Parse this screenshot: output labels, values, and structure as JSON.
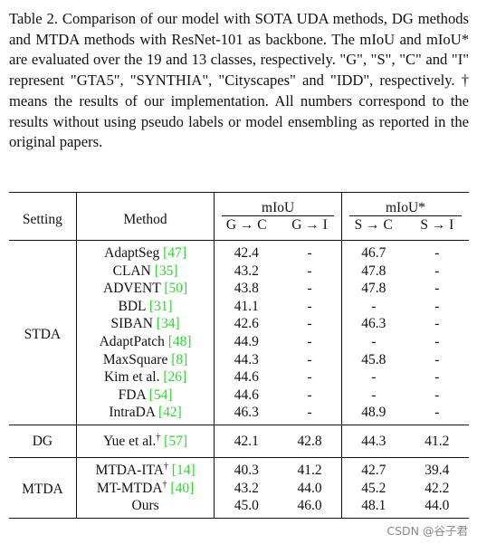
{
  "caption": "Table 2. Comparison of our model with SOTA UDA methods, DG methods and MTDA methods with ResNet-101 as backbone. The mIoU and mIoU* are evaluated over the 19 and 13 classes, respectively. \"G\", \"S\", \"C\" and \"I\" represent \"GTA5\", \"SYNTHIA\", \"Cityscapes\" and \"IDD\", respectively. † means the results of our implementation. All numbers correspond to the results without using pseudo labels or model ensembling as reported in the original papers.",
  "header": {
    "setting": "Setting",
    "method": "Method",
    "miou": "mIoU",
    "miou_star": "mIoU*",
    "g_c": "G → C",
    "g_i": "G → I",
    "s_c": "S → C",
    "s_i": "S → I"
  },
  "groups": {
    "stda": "STDA",
    "dg": "DG",
    "mtda": "MTDA"
  },
  "rows": [
    {
      "name": "AdaptSeg ",
      "cite": "[47]",
      "dag": "",
      "gc": "42.4",
      "gi": "-",
      "sc": "46.7",
      "si": "-"
    },
    {
      "name": "CLAN ",
      "cite": "[35]",
      "dag": "",
      "gc": "43.2",
      "gi": "-",
      "sc": "47.8",
      "si": "-"
    },
    {
      "name": "ADVENT ",
      "cite": "[50]",
      "dag": "",
      "gc": "43.8",
      "gi": "-",
      "sc": "47.8",
      "si": "-"
    },
    {
      "name": "BDL ",
      "cite": "[31]",
      "dag": "",
      "gc": "41.1",
      "gi": "-",
      "sc": "-",
      "si": "-"
    },
    {
      "name": "SIBAN ",
      "cite": "[34]",
      "dag": "",
      "gc": "42.6",
      "gi": "-",
      "sc": "46.3",
      "si": "-"
    },
    {
      "name": "AdaptPatch ",
      "cite": "[48]",
      "dag": "",
      "gc": "44.9",
      "gi": "-",
      "sc": "-",
      "si": "-"
    },
    {
      "name": "MaxSquare ",
      "cite": "[8]",
      "dag": "",
      "gc": "44.3",
      "gi": "-",
      "sc": "45.8",
      "si": "-"
    },
    {
      "name": "Kim et al. ",
      "cite": "[26]",
      "dag": "",
      "gc": "44.6",
      "gi": "-",
      "sc": "-",
      "si": "-"
    },
    {
      "name": "FDA ",
      "cite": "[54]",
      "dag": "",
      "gc": "44.6",
      "gi": "-",
      "sc": "-",
      "si": "-"
    },
    {
      "name": "IntraDA ",
      "cite": "[42]",
      "dag": "",
      "gc": "46.3",
      "gi": "-",
      "sc": "48.9",
      "si": "-"
    },
    {
      "name": "Yue et al.",
      "cite": "[57]",
      "dag": "†",
      "gc": "42.1",
      "gi": "42.8",
      "sc": "44.3",
      "si": "41.2"
    },
    {
      "name": "MTDA-ITA",
      "cite": "[14]",
      "dag": "†",
      "gc": "40.3",
      "gi": "41.2",
      "sc": "42.7",
      "si": "39.4"
    },
    {
      "name": "MT-MTDA",
      "cite": "[40]",
      "dag": "†",
      "gc": "43.2",
      "gi": "44.0",
      "sc": "45.2",
      "si": "42.2"
    },
    {
      "name": "Ours",
      "cite": "",
      "dag": "",
      "gc": "45.0",
      "gi": "46.0",
      "sc": "48.1",
      "si": "44.0"
    }
  ],
  "watermark": "CSDN @谷子君",
  "colors": {
    "citation": "#2bd82b",
    "text": "#111111",
    "watermark": "#888888"
  }
}
